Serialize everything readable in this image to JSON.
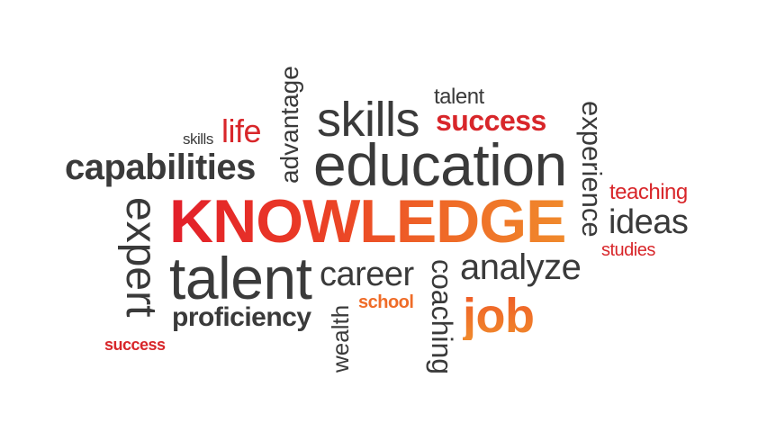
{
  "words": {
    "skills_small": "skills",
    "life": "life",
    "advantage": "advantage",
    "skills_large": "skills",
    "talent_small": "talent",
    "success_top": "success",
    "experience": "experience",
    "capabilities": "capabilities",
    "education": "education",
    "teaching": "teaching",
    "knowledge": "KNOWLEDGE",
    "ideas": "ideas",
    "expert": "expert",
    "studies": "studies",
    "talent_large": "talent",
    "career": "career",
    "analyze": "analyze",
    "coaching": "coaching",
    "school": "school",
    "job": "job",
    "proficiency": "proficiency",
    "wealth": "wealth",
    "success_bottom": "success"
  },
  "colors": {
    "gray": "#3a3a3a",
    "red": "#d8262a",
    "orange": "#ef6c28"
  }
}
